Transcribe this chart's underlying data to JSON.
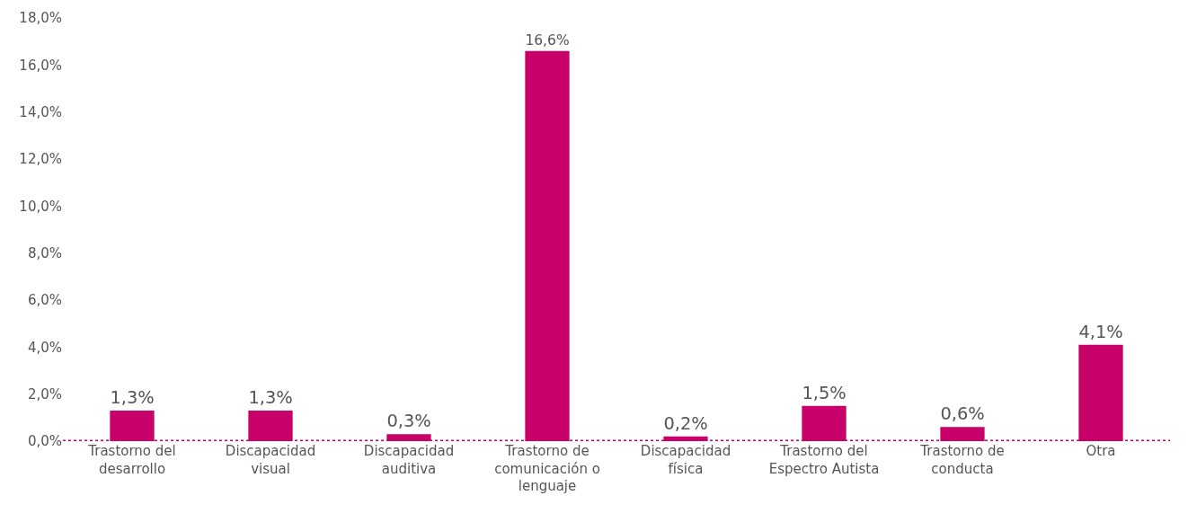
{
  "chart_data": {
    "type": "bar",
    "categories": [
      "Trastorno del desarrollo",
      "Discapacidad visual",
      "Discapacidad auditiva",
      "Trastorno de comunicación o lenguaje",
      "Discapacidad física",
      "Trastorno del Espectro Autista",
      "Trastorno de conducta",
      "Otra"
    ],
    "values": [
      1.3,
      1.3,
      0.3,
      16.6,
      0.2,
      1.5,
      0.6,
      4.1
    ],
    "value_labels": [
      "1,3%",
      "1,3%",
      "0,3%",
      "16,6%",
      "0,2%",
      "1,5%",
      "0,6%",
      "4,1%"
    ],
    "color": "#c8006a",
    "ylim": [
      0,
      18
    ],
    "yticks": [
      {
        "value": 0,
        "label": "0,0%"
      },
      {
        "value": 2,
        "label": "2,0%"
      },
      {
        "value": 4,
        "label": "4,0%"
      },
      {
        "value": 6,
        "label": "6,0%"
      },
      {
        "value": 8,
        "label": "8,0%"
      },
      {
        "value": 10,
        "label": "10,0%"
      },
      {
        "value": 12,
        "label": "12,0%"
      },
      {
        "value": 14,
        "label": "14,0%"
      },
      {
        "value": 16,
        "label": "16,0%"
      },
      {
        "value": 18,
        "label": "18,0%"
      }
    ],
    "ref_lines": [
      {
        "axis": "y",
        "value": 0,
        "color": "#c8006a",
        "line_style": "dotted"
      }
    ],
    "grid": false
  }
}
